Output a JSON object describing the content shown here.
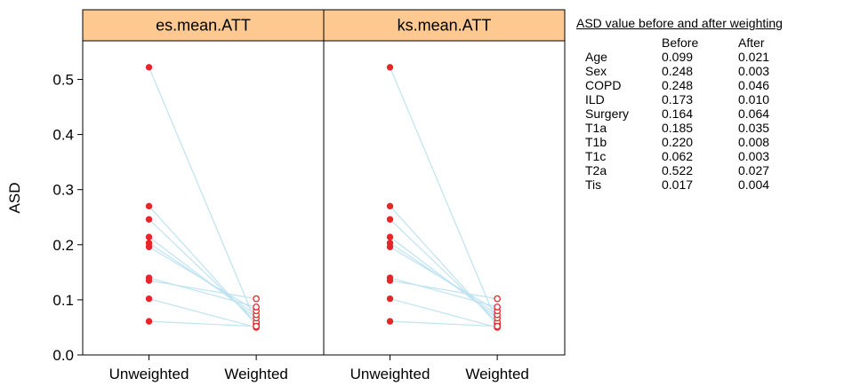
{
  "chart_data": {
    "type": "line",
    "ylabel": "ASD",
    "ylim": [
      0,
      0.57
    ],
    "yticks": [
      0.0,
      0.1,
      0.2,
      0.3,
      0.4,
      0.5
    ],
    "ytick_labels": [
      "0.0",
      "0.1",
      "0.2",
      "0.3",
      "0.4",
      "0.5"
    ],
    "categories": [
      "Unweighted",
      "Weighted"
    ],
    "grid": false,
    "colors": {
      "point": "#e8252a",
      "line": "#bfe3f0",
      "strip": "#fdc991",
      "frame": "#000000"
    },
    "panels": [
      {
        "title": "es.mean.ATT",
        "pairs": [
          {
            "before": 0.522,
            "after": 0.058
          },
          {
            "before": 0.27,
            "after": 0.055
          },
          {
            "before": 0.246,
            "after": 0.06
          },
          {
            "before": 0.214,
            "after": 0.067
          },
          {
            "before": 0.203,
            "after": 0.073
          },
          {
            "before": 0.196,
            "after": 0.08
          },
          {
            "before": 0.14,
            "after": 0.087
          },
          {
            "before": 0.135,
            "after": 0.102
          },
          {
            "before": 0.102,
            "after": 0.05
          },
          {
            "before": 0.061,
            "after": 0.052
          }
        ]
      },
      {
        "title": "ks.mean.ATT",
        "pairs": [
          {
            "before": 0.522,
            "after": 0.058
          },
          {
            "before": 0.27,
            "after": 0.055
          },
          {
            "before": 0.246,
            "after": 0.06
          },
          {
            "before": 0.214,
            "after": 0.067
          },
          {
            "before": 0.203,
            "after": 0.073
          },
          {
            "before": 0.196,
            "after": 0.08
          },
          {
            "before": 0.14,
            "after": 0.087
          },
          {
            "before": 0.135,
            "after": 0.102
          },
          {
            "before": 0.102,
            "after": 0.05
          },
          {
            "before": 0.061,
            "after": 0.052
          }
        ]
      }
    ]
  },
  "table": {
    "title": "ASD value before and after weighting",
    "headers": {
      "before": "Before",
      "after": "After"
    },
    "rows": [
      {
        "name": "Age",
        "before": "0.099",
        "after": "0.021"
      },
      {
        "name": "Sex",
        "before": "0.248",
        "after": "0.003"
      },
      {
        "name": "COPD",
        "before": "0.248",
        "after": "0.046"
      },
      {
        "name": "ILD",
        "before": "0.173",
        "after": "0.010"
      },
      {
        "name": "Surgery",
        "before": "0.164",
        "after": "0.064"
      },
      {
        "name": "T1a",
        "before": "0.185",
        "after": "0.035"
      },
      {
        "name": "T1b",
        "before": "0.220",
        "after": "0.008"
      },
      {
        "name": "T1c",
        "before": "0.062",
        "after": "0.003"
      },
      {
        "name": "T2a",
        "before": "0.522",
        "after": "0.027"
      },
      {
        "name": "Tis",
        "before": "0.017",
        "after": "0.004"
      }
    ]
  }
}
